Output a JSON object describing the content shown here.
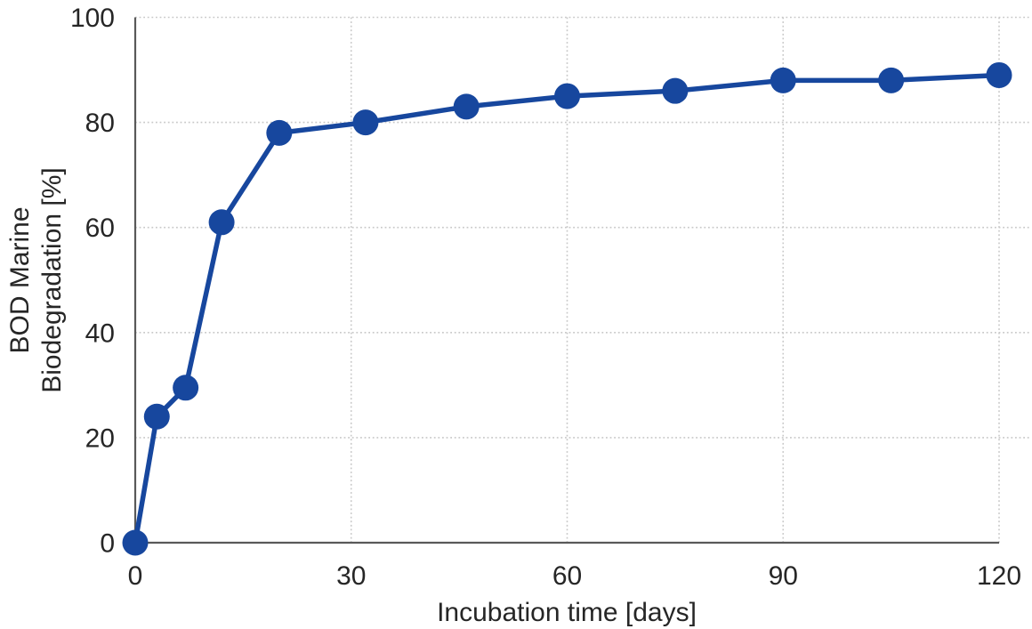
{
  "chart_data": {
    "type": "line",
    "title": "",
    "xlabel": "Incubation time [days]",
    "ylabel": "BOD Marine Biodegradation [%]",
    "ylabel_lines": [
      "BOD Marine",
      "Biodegradation [%]"
    ],
    "x": [
      0,
      3,
      7,
      12,
      20,
      32,
      46,
      60,
      75,
      90,
      105,
      120
    ],
    "series": [
      {
        "name": "BOD Marine Biodegradation",
        "values": [
          0,
          24,
          29.5,
          61,
          78,
          80,
          83,
          85,
          86,
          88,
          88,
          89
        ]
      }
    ],
    "xlim": [
      0,
      120
    ],
    "ylim": [
      0,
      100
    ],
    "x_ticks": [
      0,
      30,
      60,
      90,
      120
    ],
    "y_ticks": [
      0,
      20,
      40,
      60,
      80,
      100
    ],
    "grid": "dotted",
    "legend": false,
    "marker": "circle",
    "colors": {
      "line": "#17479e",
      "marker": "#17479e",
      "axis": "#595959",
      "grid": "#c8c8c8",
      "text": "#262626",
      "background": "#ffffff"
    }
  }
}
